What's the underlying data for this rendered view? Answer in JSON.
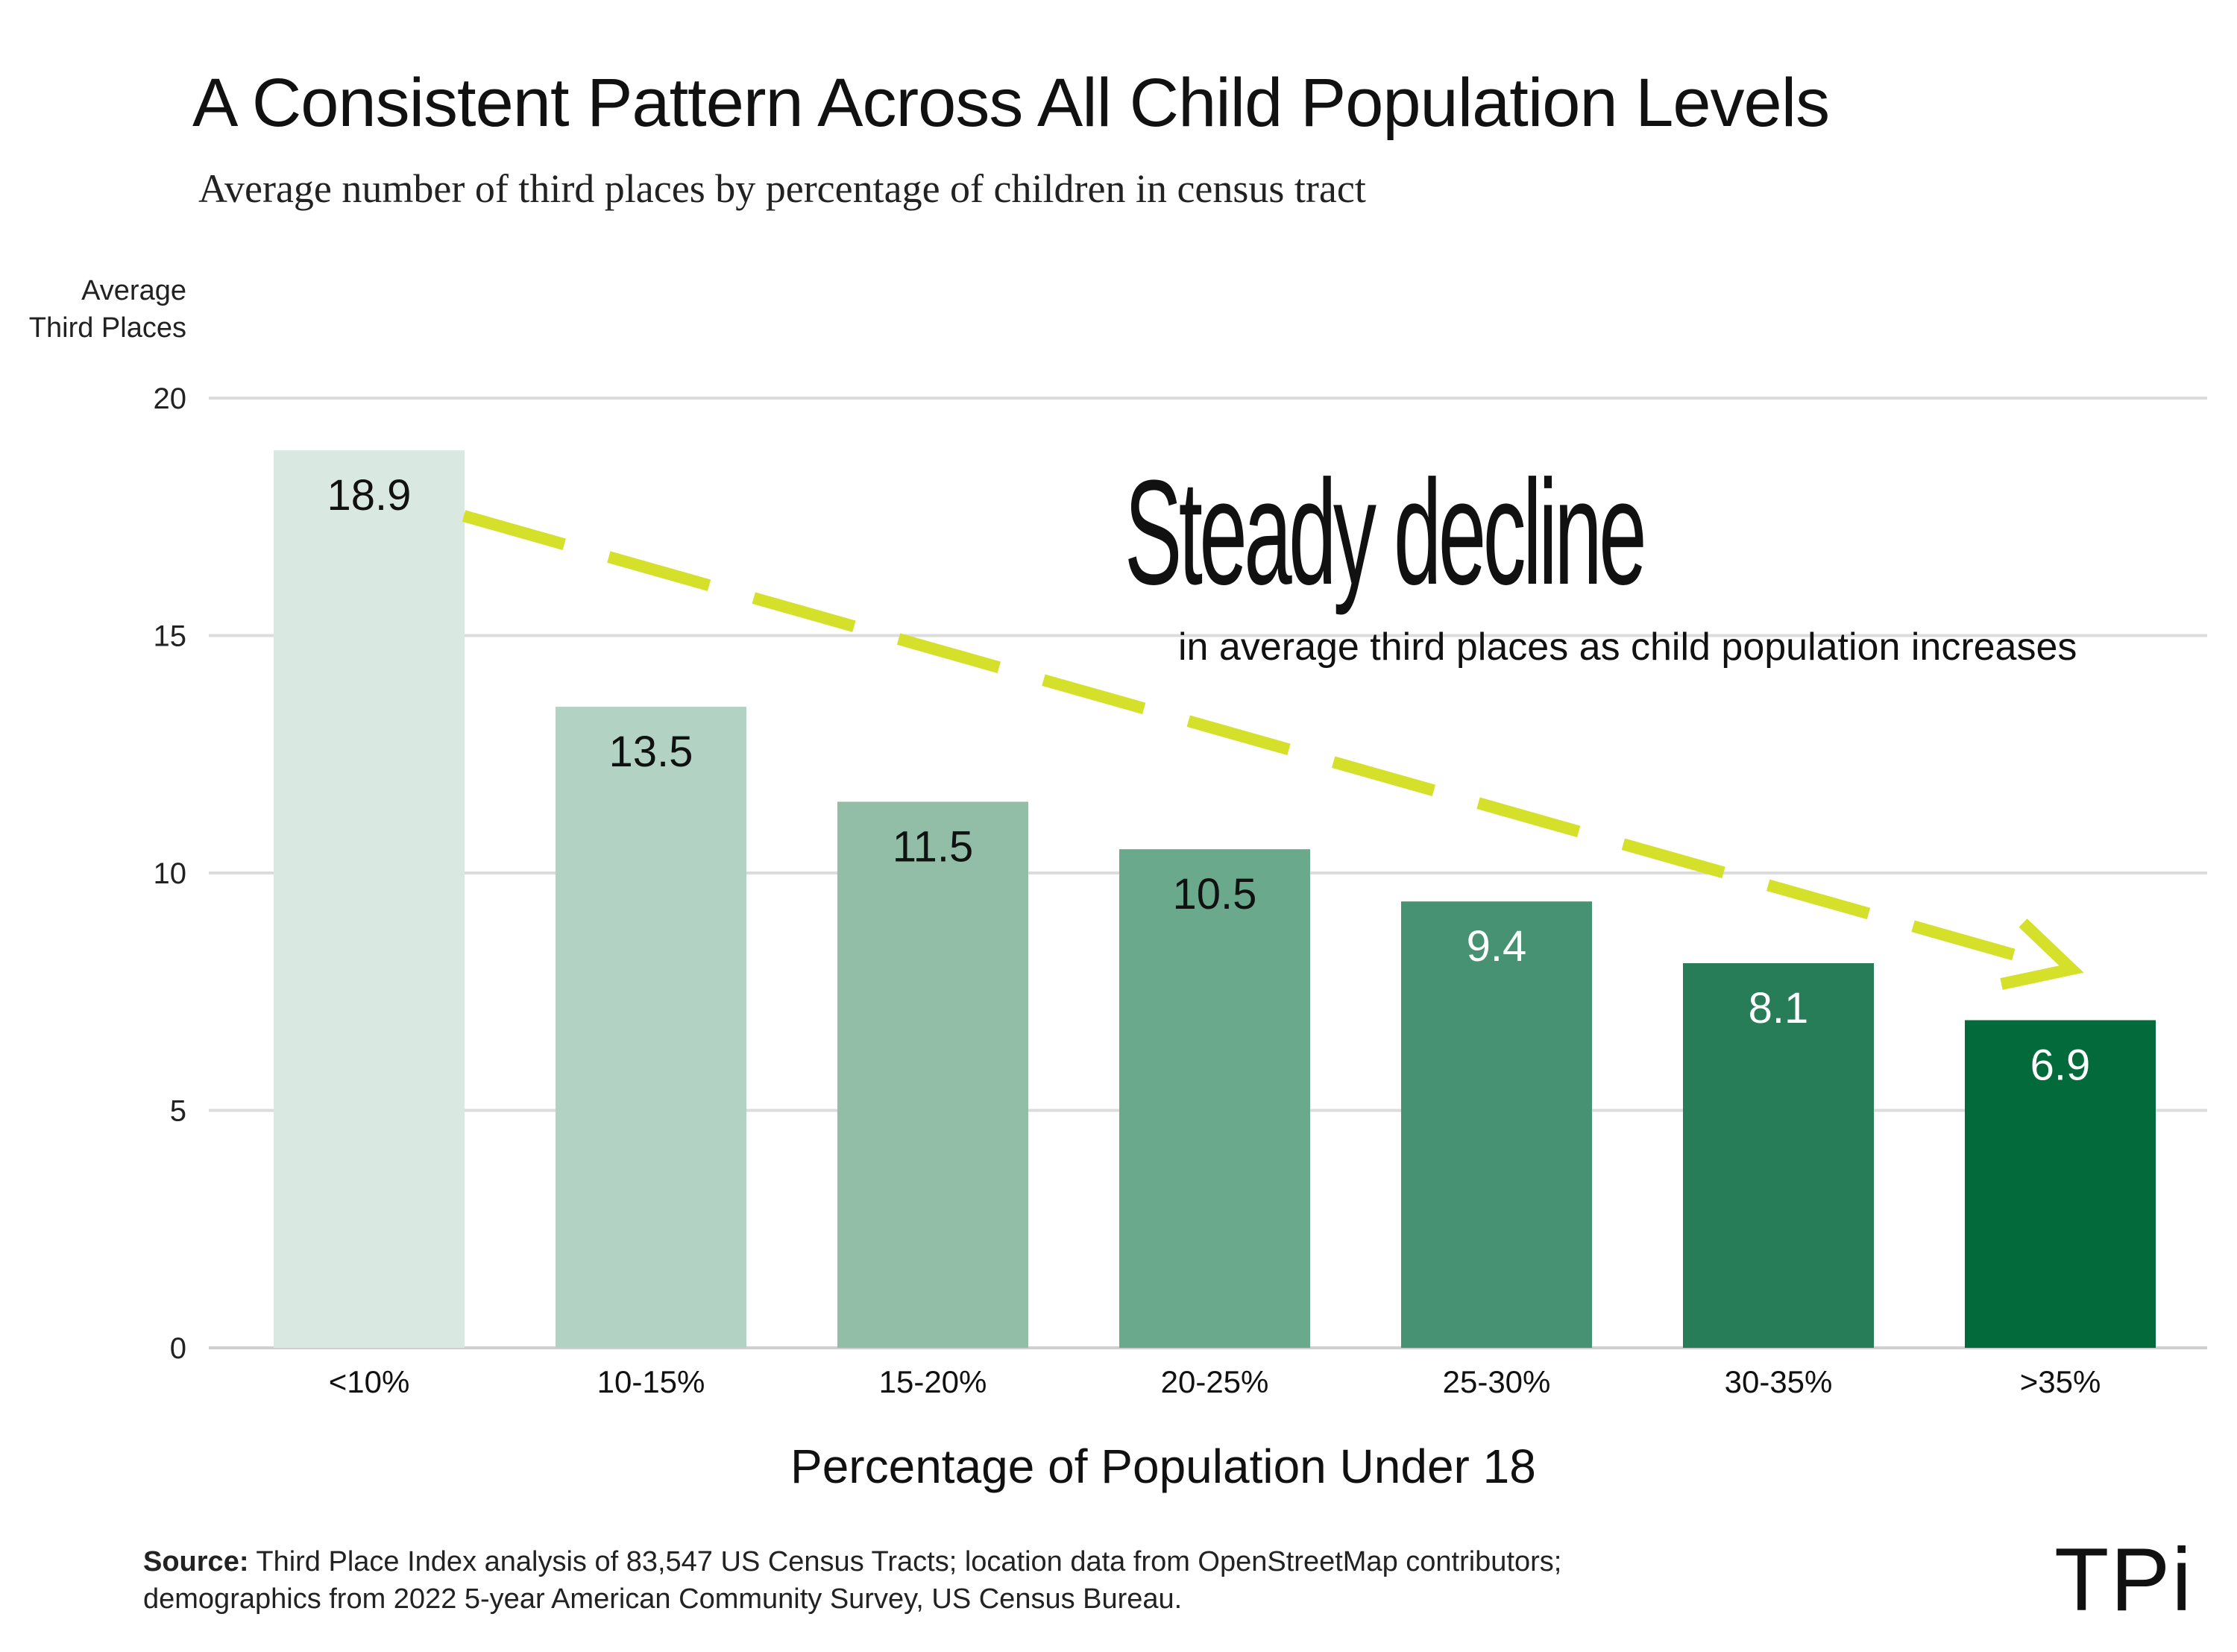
{
  "header": {
    "title": "A Consistent Pattern Across All Child Population Levels",
    "subtitle": "Average number of third places by percentage of children in census tract"
  },
  "annotation": {
    "headline": "Steady decline",
    "detail": "in average third places as child population increases",
    "arrow_color": "#d4e02a"
  },
  "footer": {
    "source_label": "Source:",
    "source_line1": "Third Place Index analysis of 83,547 US Census Tracts; location data from OpenStreetMap contributors;",
    "source_line2": "demographics from 2022 5-year American Community Survey, US Census Bureau.",
    "logo": "TPi"
  },
  "chart_data": {
    "type": "bar",
    "title": "A Consistent Pattern Across All Child Population Levels",
    "subtitle": "Average number of third places by percentage of children in census tract",
    "ylabel_line1": "Average",
    "ylabel_line2": "Third Places",
    "xlabel": "Percentage of Population Under 18",
    "categories": [
      "<10%",
      "10-15%",
      "15-20%",
      "20-25%",
      "25-30%",
      "30-35%",
      ">35%"
    ],
    "values": [
      18.9,
      13.5,
      11.5,
      10.5,
      9.4,
      8.1,
      6.9
    ],
    "value_labels": [
      "18.9",
      "13.5",
      "11.5",
      "10.5",
      "9.4",
      "8.1",
      "6.9"
    ],
    "bar_colors": [
      "#d9e8e1",
      "#b2d3c4",
      "#92bea8",
      "#6aa98c",
      "#479272",
      "#277d58",
      "#036b3b"
    ],
    "label_colors": [
      "#111111",
      "#111111",
      "#111111",
      "#111111",
      "#ffffff",
      "#ffffff",
      "#ffffff"
    ],
    "ylim": [
      0,
      20
    ],
    "yticks": [
      0,
      5,
      10,
      15,
      20
    ],
    "grid": true,
    "grid_color": "#dcdcdc"
  }
}
